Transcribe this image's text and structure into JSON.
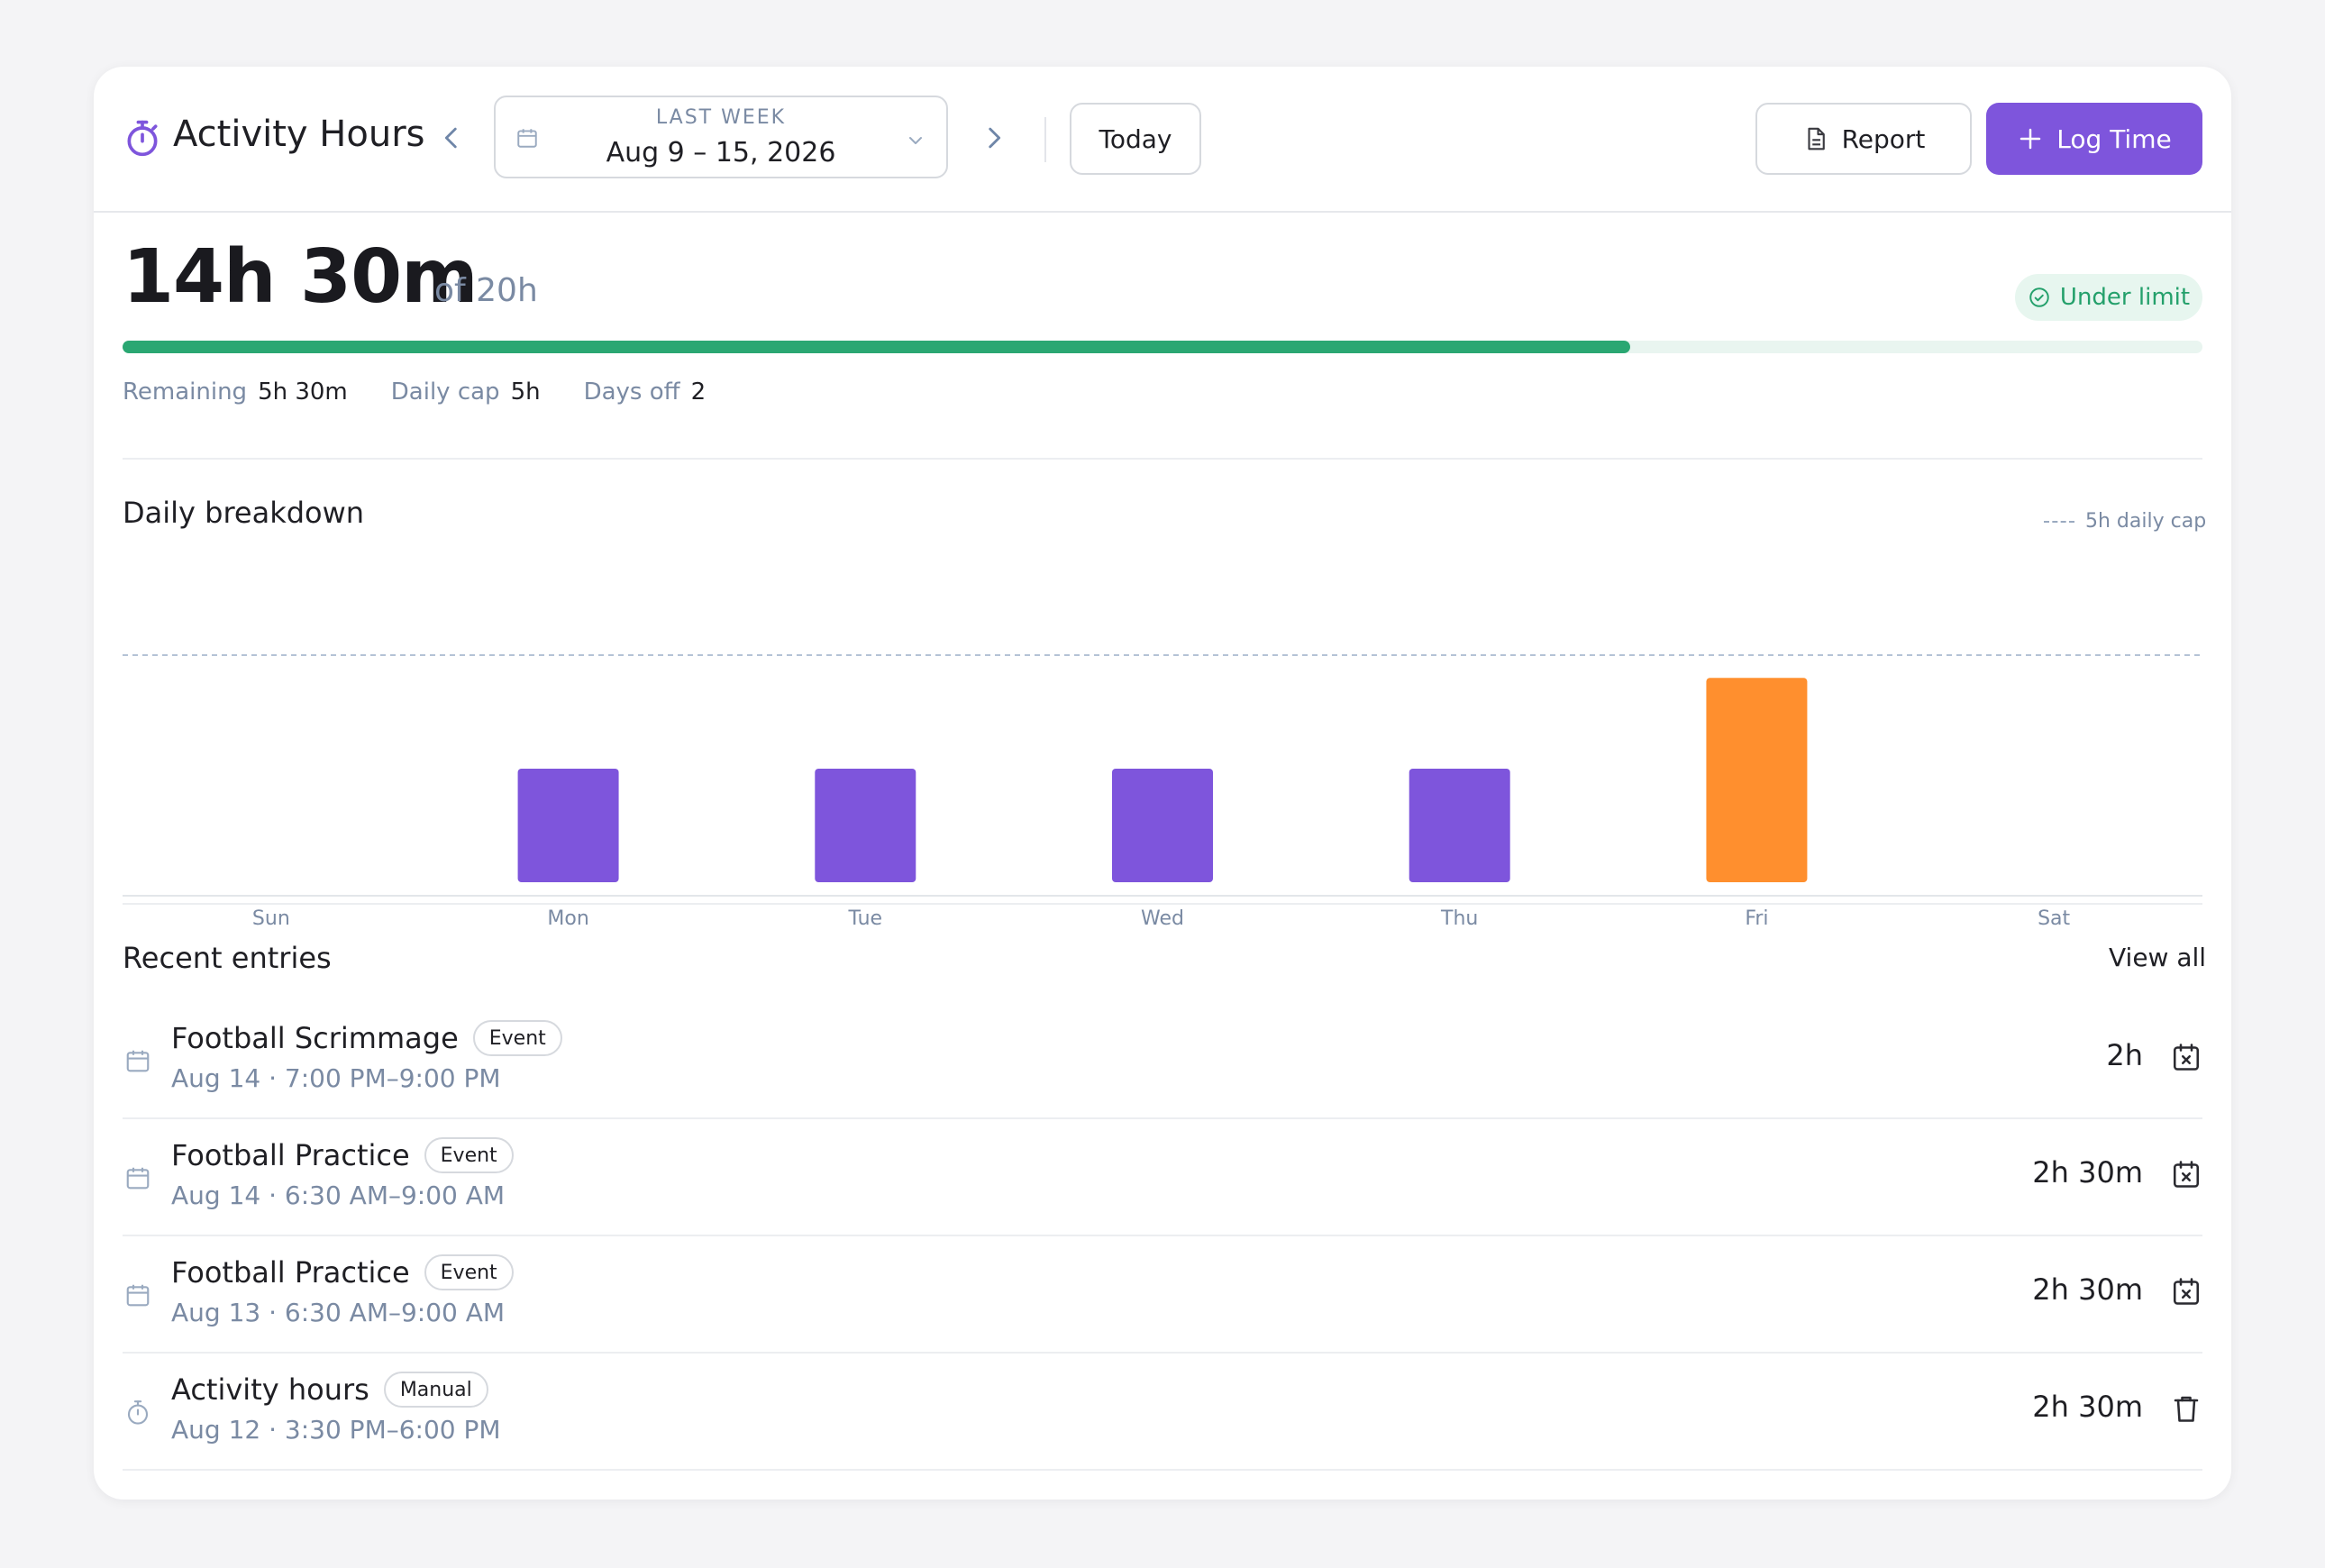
{
  "header": {
    "title": "Activity Hours",
    "title_icon": "stopwatch-icon",
    "range_label": "LAST WEEK",
    "range_value": "Aug 9 – 15, 2026",
    "today_label": "Today",
    "report_label": "Report",
    "log_label": "Log Time"
  },
  "summary": {
    "total": "14h 30m",
    "of": "of 20h",
    "status": "Under limit",
    "progress_percent": 72.5,
    "remaining_label": "Remaining",
    "remaining_value": "5h 30m",
    "cap_label": "Daily cap",
    "cap_value": "5h",
    "off_label": "Days off",
    "off_value": "2"
  },
  "breakdown": {
    "title": "Daily breakdown",
    "legend": "5h daily cap"
  },
  "chart_data": {
    "type": "bar",
    "categories": [
      "Sun",
      "Mon",
      "Tue",
      "Wed",
      "Thu",
      "Fri",
      "Sat"
    ],
    "values": [
      0,
      2.5,
      2.5,
      2.5,
      2.5,
      4.5,
      0
    ],
    "reference_line": 5,
    "ylim": [
      0,
      5.5
    ],
    "colors": [
      "#7e55dc",
      "#7e55dc",
      "#7e55dc",
      "#7e55dc",
      "#7e55dc",
      "#ff8f2e",
      "#7e55dc"
    ],
    "title": "Daily breakdown",
    "xlabel": "",
    "ylabel": ""
  },
  "recent": {
    "title": "Recent entries",
    "view_all": "View all",
    "entries": [
      {
        "name": "Football Scrimmage",
        "tag": "Event",
        "when": "Aug 14 · 7:00 PM–9:00 PM",
        "duration": "2h",
        "icon": "calendar-icon",
        "action": "calendar-remove-icon"
      },
      {
        "name": "Football Practice",
        "tag": "Event",
        "when": "Aug 14 · 6:30 AM–9:00 AM",
        "duration": "2h 30m",
        "icon": "calendar-icon",
        "action": "calendar-remove-icon"
      },
      {
        "name": "Football Practice",
        "tag": "Event",
        "when": "Aug 13 · 6:30 AM–9:00 AM",
        "duration": "2h 30m",
        "icon": "calendar-icon",
        "action": "calendar-remove-icon"
      },
      {
        "name": "Activity hours",
        "tag": "Manual",
        "when": "Aug 12 · 3:30 PM–6:00 PM",
        "duration": "2h 30m",
        "icon": "stopwatch-icon",
        "action": "trash-icon"
      }
    ]
  },
  "colors": {
    "accent": "#7e55dc",
    "success": "#2aa772",
    "warning": "#ff8f2e",
    "muted": "#7a8aa3"
  }
}
